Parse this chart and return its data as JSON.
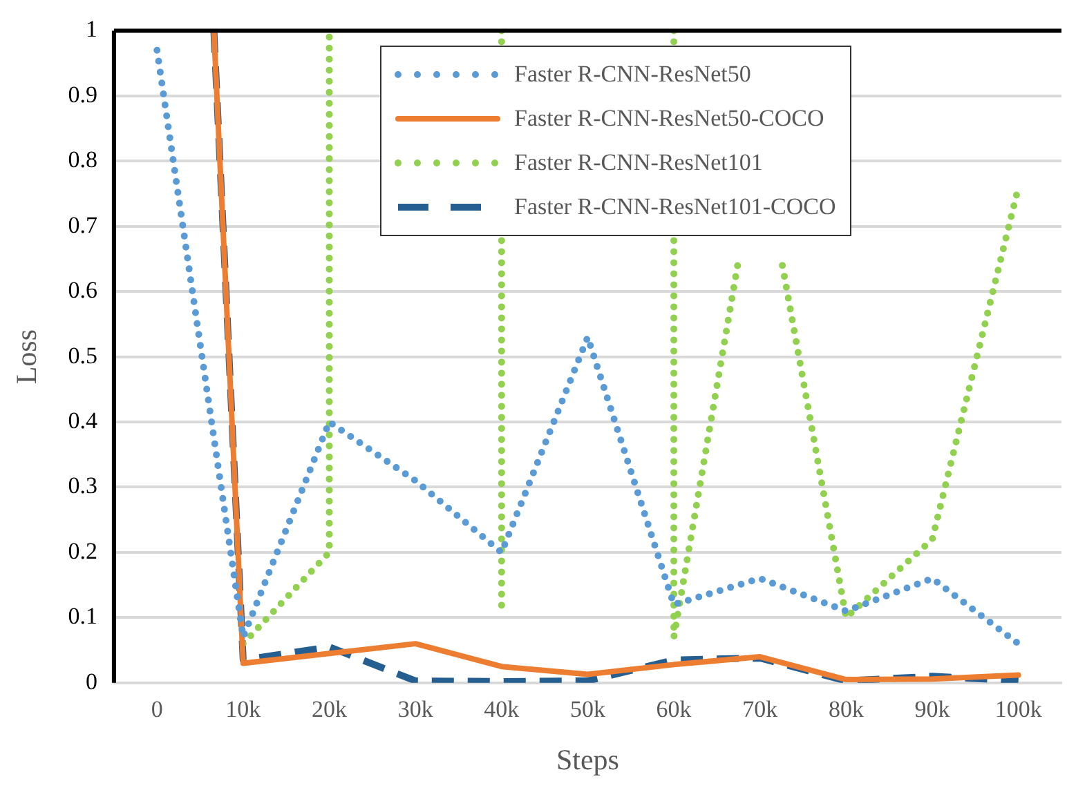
{
  "chart_data": {
    "type": "line",
    "xlabel": "Steps",
    "ylabel": "Loss",
    "xlim": [
      -5000,
      105000
    ],
    "xticks": [
      0,
      {
        "value": 10000,
        "label": "10k"
      },
      {
        "value": 20000,
        "label": "20k"
      },
      {
        "value": 30000,
        "label": "30k"
      },
      {
        "value": 40000,
        "label": "40k"
      },
      {
        "value": 50000,
        "label": "50k"
      },
      {
        "value": 60000,
        "label": "60k"
      },
      {
        "value": 70000,
        "label": "70k"
      },
      {
        "value": 80000,
        "label": "80k"
      },
      {
        "value": 90000,
        "label": "90k"
      },
      {
        "value": 100000,
        "label": "100k"
      }
    ],
    "ylim": [
      0,
      1
    ],
    "yticks": [
      0,
      0.1,
      0.2,
      0.3,
      0.4,
      0.5,
      0.6,
      0.7,
      0.8,
      0.9,
      1
    ],
    "grid": "y",
    "legend": "top",
    "marker": "none",
    "series": [
      {
        "name": "Faster R-CNN-ResNet50",
        "color": "#5b9bd5",
        "line_style": "dotted",
        "x": [
          0,
          10000,
          20000,
          30000,
          40000,
          50000,
          60000,
          70000,
          80000,
          90000,
          100000
        ],
        "values": [
          0.97,
          0.07,
          0.4,
          0.31,
          0.2,
          0.53,
          0.12,
          0.16,
          0.11,
          0.16,
          0.06
        ]
      },
      {
        "name": "Faster R-CNN-ResNet50-COCO",
        "color": "#ed7d31",
        "line_style": "solid",
        "x": [
          6600,
          10000,
          20000,
          30000,
          40000,
          50000,
          60000,
          70000,
          80000,
          90000,
          100000
        ],
        "values": [
          1,
          0.03,
          0.045,
          0.06,
          0.025,
          0.013,
          0.028,
          0.04,
          0.005,
          0.006,
          0.012
        ]
      },
      {
        "name": "Faster R-CNN-ResNet101",
        "color": "#92d050",
        "line_style": "dotted",
        "x": [
          10000,
          20000,
          20000,
          30000,
          40000,
          40000,
          50000,
          60000,
          60000,
          67400,
          70000,
          72600,
          80000,
          90000,
          100000
        ],
        "values": [
          0.06,
          0.2,
          1,
          null,
          1,
          0.105,
          null,
          1,
          0.07,
          0.64,
          null,
          0.64,
          0.1,
          0.22,
          0.76
        ]
      },
      {
        "name": "Faster R-CNN-ResNet101-COCO",
        "color": "#255e91",
        "line_style": "dashed",
        "x": [
          6600,
          10000,
          20000,
          30000,
          40000,
          50000,
          60000,
          70000,
          80000,
          90000,
          100000
        ],
        "values": [
          1,
          0.035,
          0.055,
          0.003,
          0.002,
          0.003,
          0.035,
          0.038,
          0.003,
          0.01,
          0.003
        ]
      }
    ]
  }
}
